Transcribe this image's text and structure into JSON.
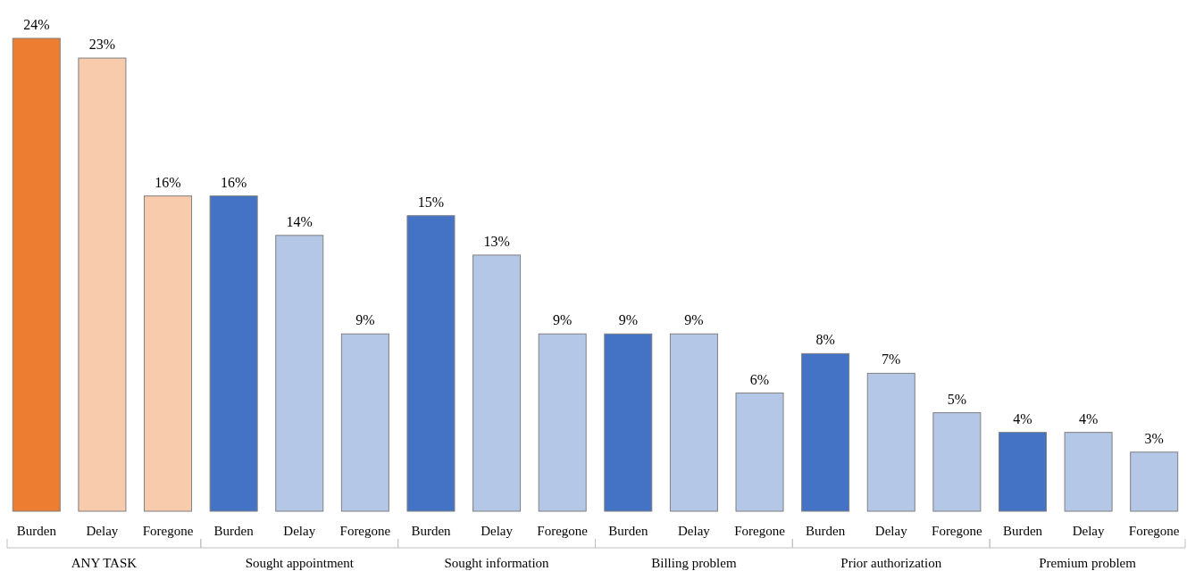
{
  "chart_data": {
    "type": "bar",
    "categories": [
      "Burden",
      "Delay",
      "Foregone",
      "Burden",
      "Delay",
      "Foregone",
      "Burden",
      "Delay",
      "Foregone",
      "Burden",
      "Delay",
      "Foregone",
      "Burden",
      "Delay",
      "Foregone",
      "Burden",
      "Delay",
      "Foregone"
    ],
    "values": [
      24,
      23,
      16,
      16,
      14,
      9,
      15,
      13,
      9,
      9,
      9,
      6,
      8,
      7,
      5,
      4,
      4,
      3
    ],
    "colors": [
      "#ed7d31",
      "#f8cbad",
      "#f8cbad",
      "#4472c4",
      "#b4c7e7",
      "#b4c7e7",
      "#4472c4",
      "#b4c7e7",
      "#b4c7e7",
      "#4472c4",
      "#b4c7e7",
      "#b4c7e7",
      "#4472c4",
      "#b4c7e7",
      "#b4c7e7",
      "#4472c4",
      "#b4c7e7",
      "#b4c7e7"
    ],
    "value_labels": [
      "24%",
      "23%",
      "16%",
      "16%",
      "14%",
      "9%",
      "15%",
      "13%",
      "9%",
      "9%",
      "9%",
      "6%",
      "8%",
      "7%",
      "5%",
      "4%",
      "4%",
      "3%"
    ],
    "annotations": [
      "ANY TASK",
      "Sought appointment",
      "Sought information",
      "Billing problem",
      "Prior authorization",
      "Premium problem"
    ]
  }
}
